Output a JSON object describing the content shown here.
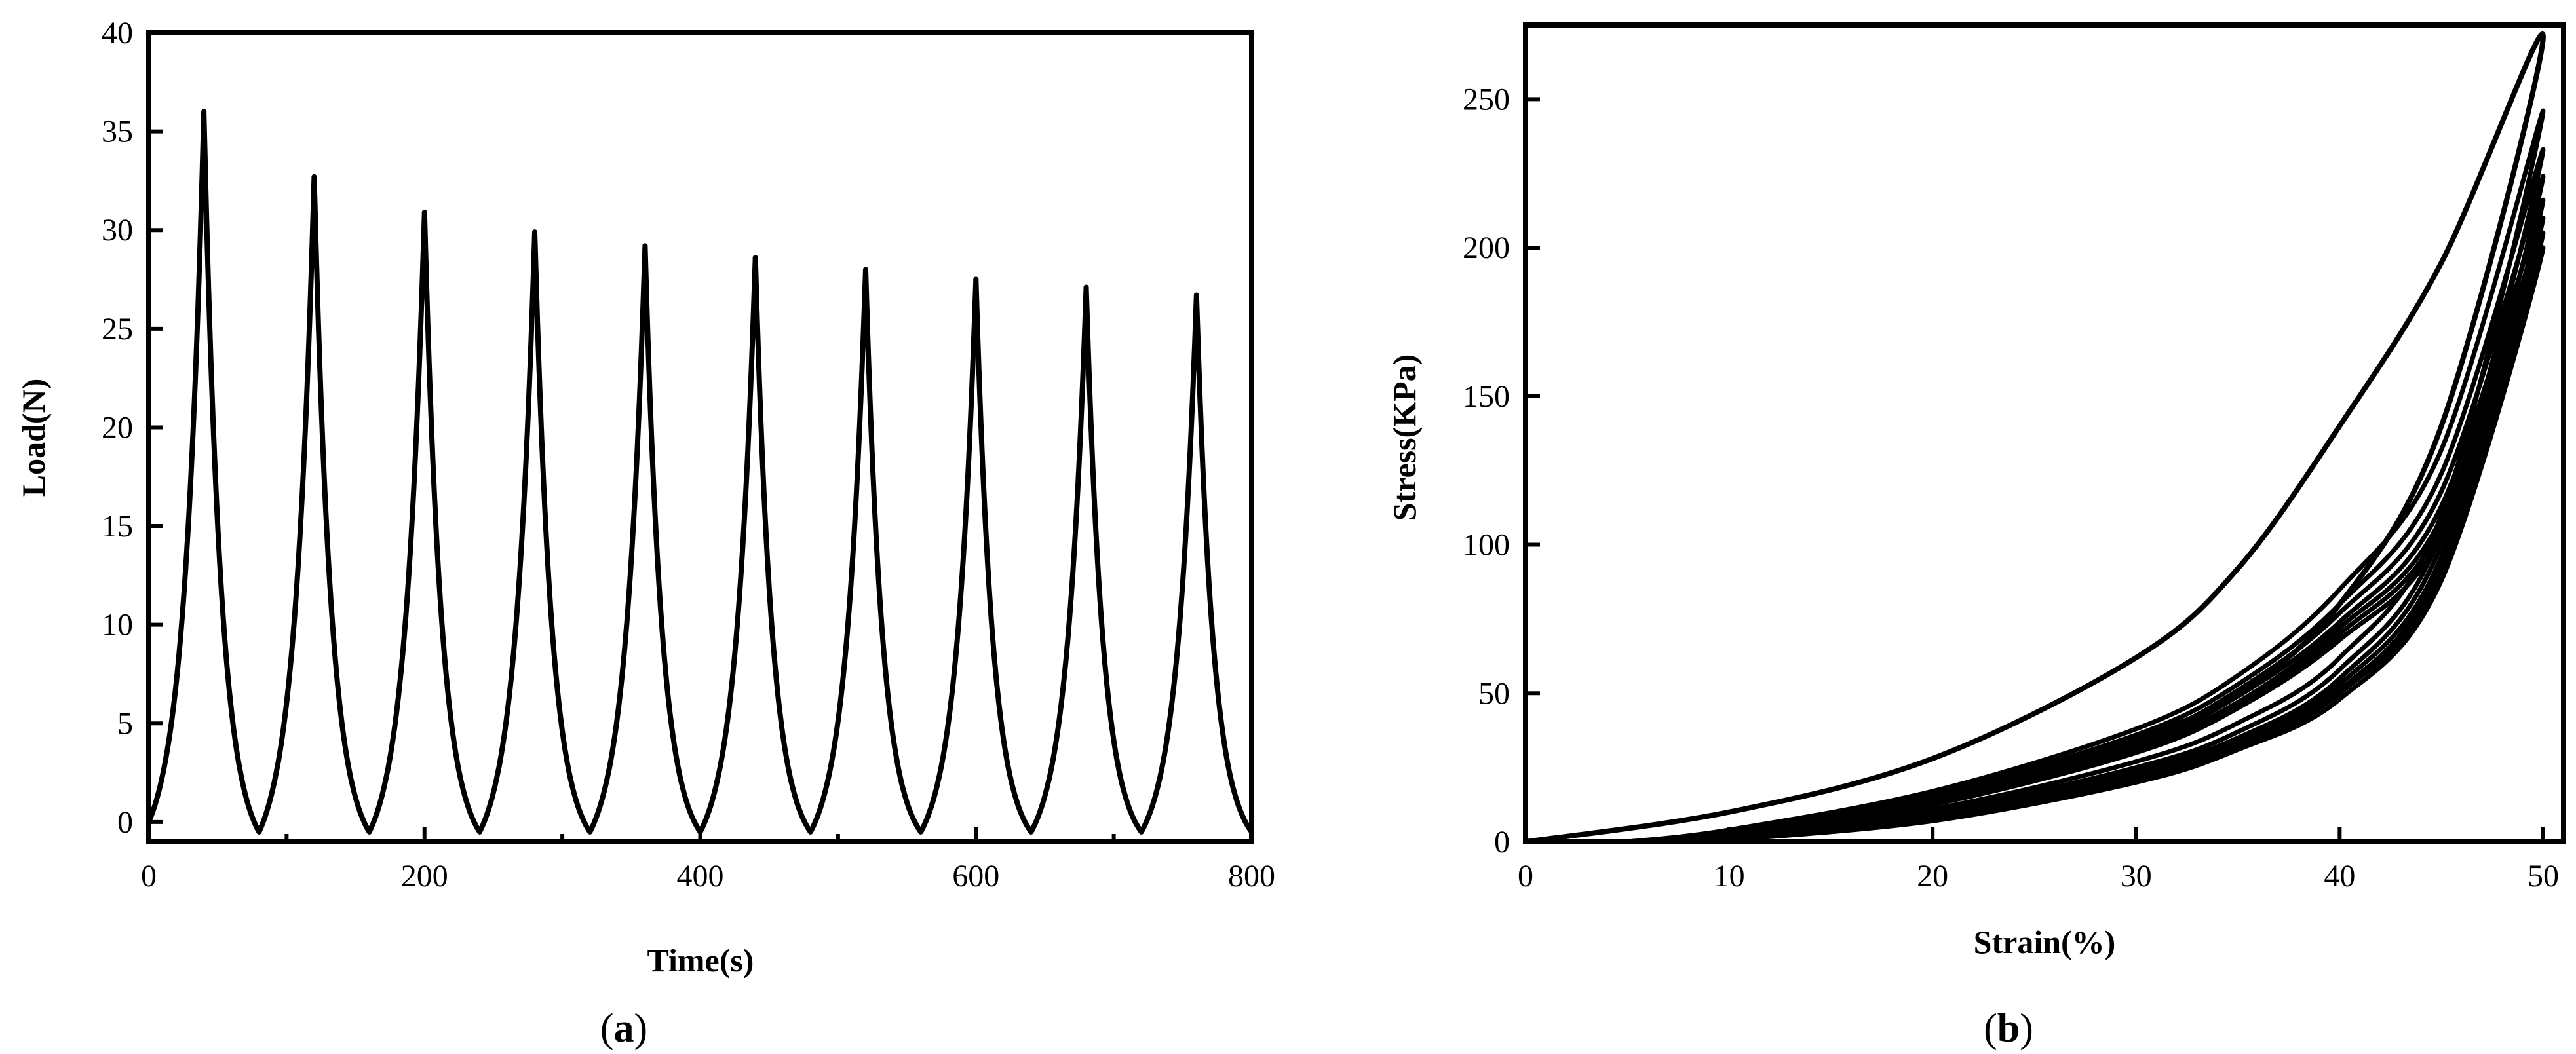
{
  "chart_data": [
    {
      "id": "a",
      "type": "line",
      "caption_prefix": "(",
      "caption_letter": "a",
      "caption_suffix": ")",
      "xlabel": "Time(s)",
      "ylabel": "Load(N)",
      "xlim": [
        0,
        800
      ],
      "ylim": [
        -1,
        40
      ],
      "xticks": [
        0,
        200,
        400,
        600,
        800
      ],
      "xticks_minor": [
        100,
        300,
        500,
        700
      ],
      "yticks": [
        0,
        5,
        10,
        15,
        20,
        25,
        30,
        35,
        40
      ],
      "grid": false,
      "legend": "none",
      "series": [
        {
          "cycle_period": 80,
          "trough_value": -0.5,
          "peaks": [
            {
              "t": 40,
              "load": 36.0
            },
            {
              "t": 120,
              "load": 32.7
            },
            {
              "t": 200,
              "load": 30.9
            },
            {
              "t": 280,
              "load": 29.9
            },
            {
              "t": 360,
              "load": 29.2
            },
            {
              "t": 440,
              "load": 28.6
            },
            {
              "t": 520,
              "load": 28.0
            },
            {
              "t": 600,
              "load": 27.5
            },
            {
              "t": 680,
              "load": 27.1
            },
            {
              "t": 760,
              "load": 26.7
            }
          ]
        }
      ]
    },
    {
      "id": "b",
      "type": "line",
      "caption_prefix": "(",
      "caption_letter": "b",
      "caption_suffix": ")",
      "xlabel": "Strain(%)",
      "ylabel": "Stress(KPa)",
      "xlim": [
        0,
        51
      ],
      "ylim": [
        0,
        275
      ],
      "xticks": [
        0,
        10,
        20,
        30,
        40,
        50
      ],
      "yticks": [
        0,
        50,
        100,
        150,
        200,
        250
      ],
      "grid": false,
      "legend": "none",
      "series": [
        {
          "cycle": 1,
          "loading": [
            [
              0,
              0
            ],
            [
              10,
              10
            ],
            [
              20,
              28
            ],
            [
              30,
              62
            ],
            [
              35,
              92
            ],
            [
              40,
              140
            ],
            [
              45,
              195
            ],
            [
              50,
              271
            ]
          ],
          "unloading": [
            [
              50,
              271
            ],
            [
              45,
              140
            ],
            [
              40,
              80
            ],
            [
              35,
              50
            ],
            [
              30,
              35
            ],
            [
              20,
              15
            ],
            [
              10,
              3
            ],
            [
              7,
              0
            ]
          ]
        },
        {
          "cycle": 2,
          "loading": [
            [
              5,
              0
            ],
            [
              10,
              4
            ],
            [
              20,
              17
            ],
            [
              30,
              38
            ],
            [
              35,
              56
            ],
            [
              40,
              85
            ],
            [
              45,
              132
            ],
            [
              50,
              246
            ]
          ],
          "unloading": [
            [
              50,
              246
            ],
            [
              45,
              110
            ],
            [
              40,
              62
            ],
            [
              35,
              40
            ],
            [
              30,
              27
            ],
            [
              20,
              11
            ],
            [
              10,
              2
            ],
            [
              8,
              0
            ]
          ]
        },
        {
          "cycle": 3,
          "loading": [
            [
              6,
              0
            ],
            [
              10,
              3
            ],
            [
              20,
              16
            ],
            [
              30,
              36
            ],
            [
              35,
              53
            ],
            [
              40,
              80
            ],
            [
              45,
              124
            ],
            [
              50,
              233
            ]
          ],
          "unloading": [
            [
              50,
              233
            ],
            [
              45,
              104
            ],
            [
              40,
              58
            ],
            [
              35,
              37
            ],
            [
              30,
              25
            ],
            [
              20,
              10
            ],
            [
              10,
              2
            ],
            [
              8,
              0
            ]
          ]
        },
        {
          "cycle": 4,
          "loading": [
            [
              6,
              0
            ],
            [
              10,
              3
            ],
            [
              20,
              15
            ],
            [
              30,
              34
            ],
            [
              35,
              51
            ],
            [
              40,
              77
            ],
            [
              45,
              118
            ],
            [
              50,
              224
            ]
          ],
          "unloading": [
            [
              50,
              224
            ],
            [
              45,
              100
            ],
            [
              40,
              55
            ],
            [
              35,
              35
            ],
            [
              30,
              24
            ],
            [
              20,
              9
            ],
            [
              10,
              1.5
            ],
            [
              8,
              0
            ]
          ]
        },
        {
          "cycle": 5,
          "loading": [
            [
              7,
              0
            ],
            [
              10,
              2.5
            ],
            [
              20,
              14
            ],
            [
              30,
              33
            ],
            [
              35,
              49
            ],
            [
              40,
              74
            ],
            [
              45,
              113
            ],
            [
              50,
              216
            ]
          ],
          "unloading": [
            [
              50,
              216
            ],
            [
              45,
              96
            ],
            [
              40,
              53
            ],
            [
              35,
              34
            ],
            [
              30,
              23
            ],
            [
              20,
              8.5
            ],
            [
              10,
              1.2
            ],
            [
              8,
              0
            ]
          ]
        },
        {
          "cycle": 6,
          "loading": [
            [
              7,
              0
            ],
            [
              10,
              2.2
            ],
            [
              20,
              13.5
            ],
            [
              30,
              32
            ],
            [
              35,
              47
            ],
            [
              40,
              72
            ],
            [
              45,
              109
            ],
            [
              50,
              210
            ]
          ],
          "unloading": [
            [
              50,
              210
            ],
            [
              45,
              93
            ],
            [
              40,
              51
            ],
            [
              35,
              33
            ],
            [
              30,
              22
            ],
            [
              20,
              8
            ],
            [
              10,
              1
            ],
            [
              8.5,
              0
            ]
          ]
        },
        {
          "cycle": 7,
          "loading": [
            [
              7,
              0
            ],
            [
              10,
              2
            ],
            [
              20,
              13
            ],
            [
              30,
              31
            ],
            [
              35,
              46
            ],
            [
              40,
              70
            ],
            [
              45,
              106
            ],
            [
              50,
              205
            ]
          ],
          "unloading": [
            [
              50,
              205
            ],
            [
              45,
              90
            ],
            [
              40,
              50
            ],
            [
              35,
              32
            ],
            [
              30,
              21
            ],
            [
              20,
              7.5
            ],
            [
              10,
              0.8
            ],
            [
              8.5,
              0
            ]
          ]
        },
        {
          "cycle": 8,
          "loading": [
            [
              7.5,
              0
            ],
            [
              10,
              1.8
            ],
            [
              20,
              12.5
            ],
            [
              30,
              30
            ],
            [
              35,
              45
            ],
            [
              40,
              68
            ],
            [
              45,
              103
            ],
            [
              50,
              200
            ]
          ],
          "unloading": [
            [
              50,
              200
            ],
            [
              45,
              88
            ],
            [
              40,
              48
            ],
            [
              35,
              31
            ],
            [
              30,
              20
            ],
            [
              20,
              7
            ],
            [
              10,
              0.6
            ],
            [
              9,
              0
            ]
          ]
        }
      ]
    }
  ]
}
